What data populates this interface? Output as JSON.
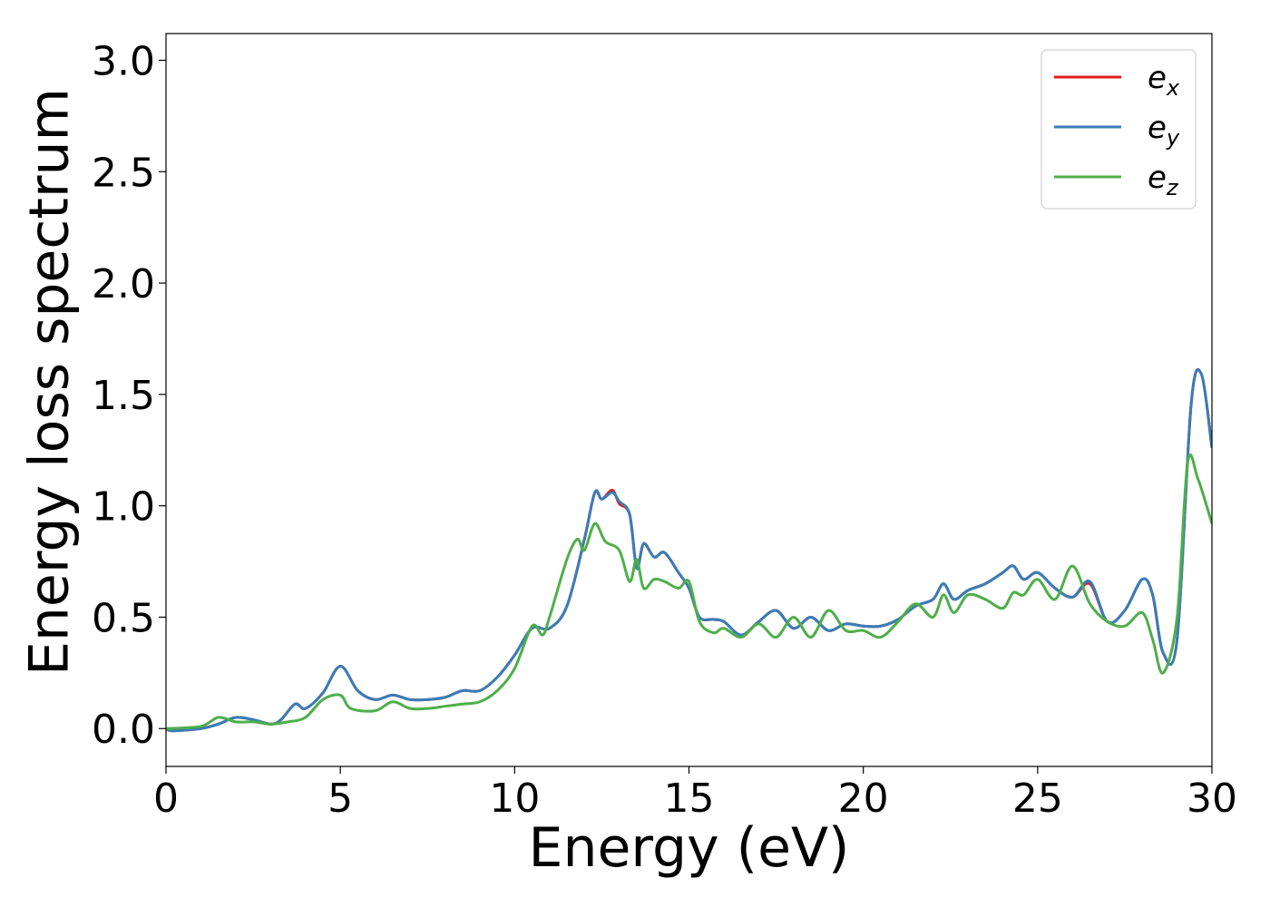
{
  "chart_data": {
    "type": "line",
    "title": "",
    "xlabel": "Energy (eV)",
    "ylabel": "Energy loss spectrum",
    "xlim": [
      0,
      30
    ],
    "ylim": [
      -0.17,
      3.12
    ],
    "x_ticks": [
      "0",
      "5",
      "10",
      "15",
      "20",
      "25",
      "30"
    ],
    "y_ticks": [
      "0.0",
      "0.5",
      "1.0",
      "1.5",
      "2.0",
      "2.5",
      "3.0"
    ],
    "grid": false,
    "legend_position": "top-right",
    "series": [
      {
        "name": "e_x",
        "label_base": "e",
        "label_sub": "x",
        "color": "#e41a1c",
        "points": [
          [
            0,
            0
          ],
          [
            0.2,
            -0.01
          ],
          [
            1,
            0.0
          ],
          [
            1.5,
            0.02
          ],
          [
            2,
            0.05
          ],
          [
            2.5,
            0.04
          ],
          [
            3,
            0.02
          ],
          [
            3.3,
            0.04
          ],
          [
            3.7,
            0.11
          ],
          [
            4,
            0.09
          ],
          [
            4.5,
            0.16
          ],
          [
            5,
            0.28
          ],
          [
            5.5,
            0.17
          ],
          [
            6,
            0.13
          ],
          [
            6.5,
            0.15
          ],
          [
            7,
            0.13
          ],
          [
            7.5,
            0.13
          ],
          [
            8,
            0.14
          ],
          [
            8.5,
            0.17
          ],
          [
            9,
            0.17
          ],
          [
            9.5,
            0.23
          ],
          [
            10,
            0.33
          ],
          [
            10.5,
            0.45
          ],
          [
            11,
            0.45
          ],
          [
            11.5,
            0.55
          ],
          [
            12,
            0.85
          ],
          [
            12.3,
            1.06
          ],
          [
            12.5,
            1.03
          ],
          [
            12.8,
            1.07
          ],
          [
            13,
            1.01
          ],
          [
            13.3,
            0.96
          ],
          [
            13.5,
            0.72
          ],
          [
            13.7,
            0.83
          ],
          [
            14,
            0.77
          ],
          [
            14.3,
            0.79
          ],
          [
            14.7,
            0.7
          ],
          [
            15,
            0.63
          ],
          [
            15.3,
            0.5
          ],
          [
            15.7,
            0.49
          ],
          [
            16,
            0.48
          ],
          [
            16.5,
            0.42
          ],
          [
            17,
            0.48
          ],
          [
            17.5,
            0.53
          ],
          [
            18,
            0.45
          ],
          [
            18.5,
            0.5
          ],
          [
            19,
            0.44
          ],
          [
            19.5,
            0.47
          ],
          [
            20,
            0.46
          ],
          [
            20.5,
            0.46
          ],
          [
            21,
            0.49
          ],
          [
            21.5,
            0.55
          ],
          [
            22,
            0.58
          ],
          [
            22.3,
            0.65
          ],
          [
            22.6,
            0.58
          ],
          [
            23,
            0.62
          ],
          [
            23.5,
            0.65
          ],
          [
            24,
            0.7
          ],
          [
            24.3,
            0.73
          ],
          [
            24.6,
            0.67
          ],
          [
            25,
            0.7
          ],
          [
            25.5,
            0.63
          ],
          [
            26,
            0.59
          ],
          [
            26.5,
            0.65
          ],
          [
            27,
            0.48
          ],
          [
            27.5,
            0.53
          ],
          [
            28,
            0.67
          ],
          [
            28.3,
            0.6
          ],
          [
            28.6,
            0.34
          ],
          [
            29,
            0.4
          ],
          [
            29.4,
            1.45
          ],
          [
            29.7,
            1.59
          ],
          [
            30,
            1.26
          ]
        ]
      },
      {
        "name": "e_y",
        "label_base": "e",
        "label_sub": "y",
        "color": "#377eb8",
        "points": [
          [
            0,
            0
          ],
          [
            0.2,
            -0.01
          ],
          [
            1,
            0.0
          ],
          [
            1.5,
            0.02
          ],
          [
            2,
            0.05
          ],
          [
            2.5,
            0.04
          ],
          [
            3,
            0.02
          ],
          [
            3.3,
            0.04
          ],
          [
            3.7,
            0.11
          ],
          [
            4,
            0.09
          ],
          [
            4.5,
            0.16
          ],
          [
            5,
            0.28
          ],
          [
            5.5,
            0.17
          ],
          [
            6,
            0.13
          ],
          [
            6.5,
            0.15
          ],
          [
            7,
            0.13
          ],
          [
            7.5,
            0.13
          ],
          [
            8,
            0.14
          ],
          [
            8.5,
            0.17
          ],
          [
            9,
            0.17
          ],
          [
            9.5,
            0.23
          ],
          [
            10,
            0.33
          ],
          [
            10.5,
            0.45
          ],
          [
            11,
            0.45
          ],
          [
            11.5,
            0.55
          ],
          [
            12,
            0.85
          ],
          [
            12.3,
            1.06
          ],
          [
            12.5,
            1.03
          ],
          [
            12.8,
            1.06
          ],
          [
            13,
            1.02
          ],
          [
            13.3,
            0.96
          ],
          [
            13.5,
            0.72
          ],
          [
            13.7,
            0.83
          ],
          [
            14,
            0.77
          ],
          [
            14.3,
            0.79
          ],
          [
            14.7,
            0.7
          ],
          [
            15,
            0.63
          ],
          [
            15.3,
            0.5
          ],
          [
            15.7,
            0.49
          ],
          [
            16,
            0.48
          ],
          [
            16.5,
            0.42
          ],
          [
            17,
            0.48
          ],
          [
            17.5,
            0.53
          ],
          [
            18,
            0.45
          ],
          [
            18.5,
            0.5
          ],
          [
            19,
            0.44
          ],
          [
            19.5,
            0.47
          ],
          [
            20,
            0.46
          ],
          [
            20.5,
            0.46
          ],
          [
            21,
            0.49
          ],
          [
            21.5,
            0.55
          ],
          [
            22,
            0.58
          ],
          [
            22.3,
            0.65
          ],
          [
            22.6,
            0.58
          ],
          [
            23,
            0.62
          ],
          [
            23.5,
            0.65
          ],
          [
            24,
            0.7
          ],
          [
            24.3,
            0.73
          ],
          [
            24.6,
            0.67
          ],
          [
            25,
            0.7
          ],
          [
            25.5,
            0.63
          ],
          [
            26,
            0.59
          ],
          [
            26.5,
            0.66
          ],
          [
            27,
            0.48
          ],
          [
            27.5,
            0.53
          ],
          [
            28,
            0.67
          ],
          [
            28.3,
            0.6
          ],
          [
            28.6,
            0.34
          ],
          [
            29,
            0.4
          ],
          [
            29.4,
            1.45
          ],
          [
            29.7,
            1.59
          ],
          [
            30,
            1.26
          ]
        ]
      },
      {
        "name": "e_z",
        "label_base": "e",
        "label_sub": "z",
        "color": "#4daf4a",
        "points": [
          [
            0,
            0
          ],
          [
            1,
            0.01
          ],
          [
            1.5,
            0.05
          ],
          [
            2,
            0.03
          ],
          [
            2.5,
            0.03
          ],
          [
            3,
            0.02
          ],
          [
            3.5,
            0.03
          ],
          [
            4,
            0.05
          ],
          [
            4.5,
            0.13
          ],
          [
            5,
            0.15
          ],
          [
            5.3,
            0.09
          ],
          [
            6,
            0.08
          ],
          [
            6.5,
            0.12
          ],
          [
            7,
            0.09
          ],
          [
            7.5,
            0.09
          ],
          [
            8,
            0.1
          ],
          [
            8.5,
            0.11
          ],
          [
            9,
            0.12
          ],
          [
            9.5,
            0.17
          ],
          [
            10,
            0.27
          ],
          [
            10.5,
            0.46
          ],
          [
            10.8,
            0.42
          ],
          [
            11,
            0.5
          ],
          [
            11.5,
            0.76
          ],
          [
            11.8,
            0.85
          ],
          [
            12,
            0.8
          ],
          [
            12.3,
            0.92
          ],
          [
            12.6,
            0.84
          ],
          [
            13,
            0.8
          ],
          [
            13.3,
            0.66
          ],
          [
            13.5,
            0.76
          ],
          [
            13.7,
            0.63
          ],
          [
            14,
            0.67
          ],
          [
            14.3,
            0.66
          ],
          [
            14.7,
            0.63
          ],
          [
            15,
            0.66
          ],
          [
            15.3,
            0.48
          ],
          [
            15.7,
            0.43
          ],
          [
            16,
            0.45
          ],
          [
            16.5,
            0.41
          ],
          [
            17,
            0.47
          ],
          [
            17.5,
            0.41
          ],
          [
            18,
            0.5
          ],
          [
            18.5,
            0.41
          ],
          [
            19,
            0.53
          ],
          [
            19.5,
            0.44
          ],
          [
            20,
            0.44
          ],
          [
            20.5,
            0.41
          ],
          [
            21,
            0.48
          ],
          [
            21.5,
            0.56
          ],
          [
            22,
            0.5
          ],
          [
            22.3,
            0.6
          ],
          [
            22.6,
            0.52
          ],
          [
            23,
            0.6
          ],
          [
            23.5,
            0.58
          ],
          [
            24,
            0.54
          ],
          [
            24.3,
            0.61
          ],
          [
            24.6,
            0.6
          ],
          [
            25,
            0.67
          ],
          [
            25.5,
            0.58
          ],
          [
            26,
            0.73
          ],
          [
            26.5,
            0.56
          ],
          [
            27,
            0.48
          ],
          [
            27.5,
            0.46
          ],
          [
            28,
            0.52
          ],
          [
            28.3,
            0.4
          ],
          [
            28.6,
            0.25
          ],
          [
            29,
            0.5
          ],
          [
            29.3,
            1.19
          ],
          [
            29.6,
            1.12
          ],
          [
            30,
            0.92
          ]
        ]
      }
    ]
  }
}
